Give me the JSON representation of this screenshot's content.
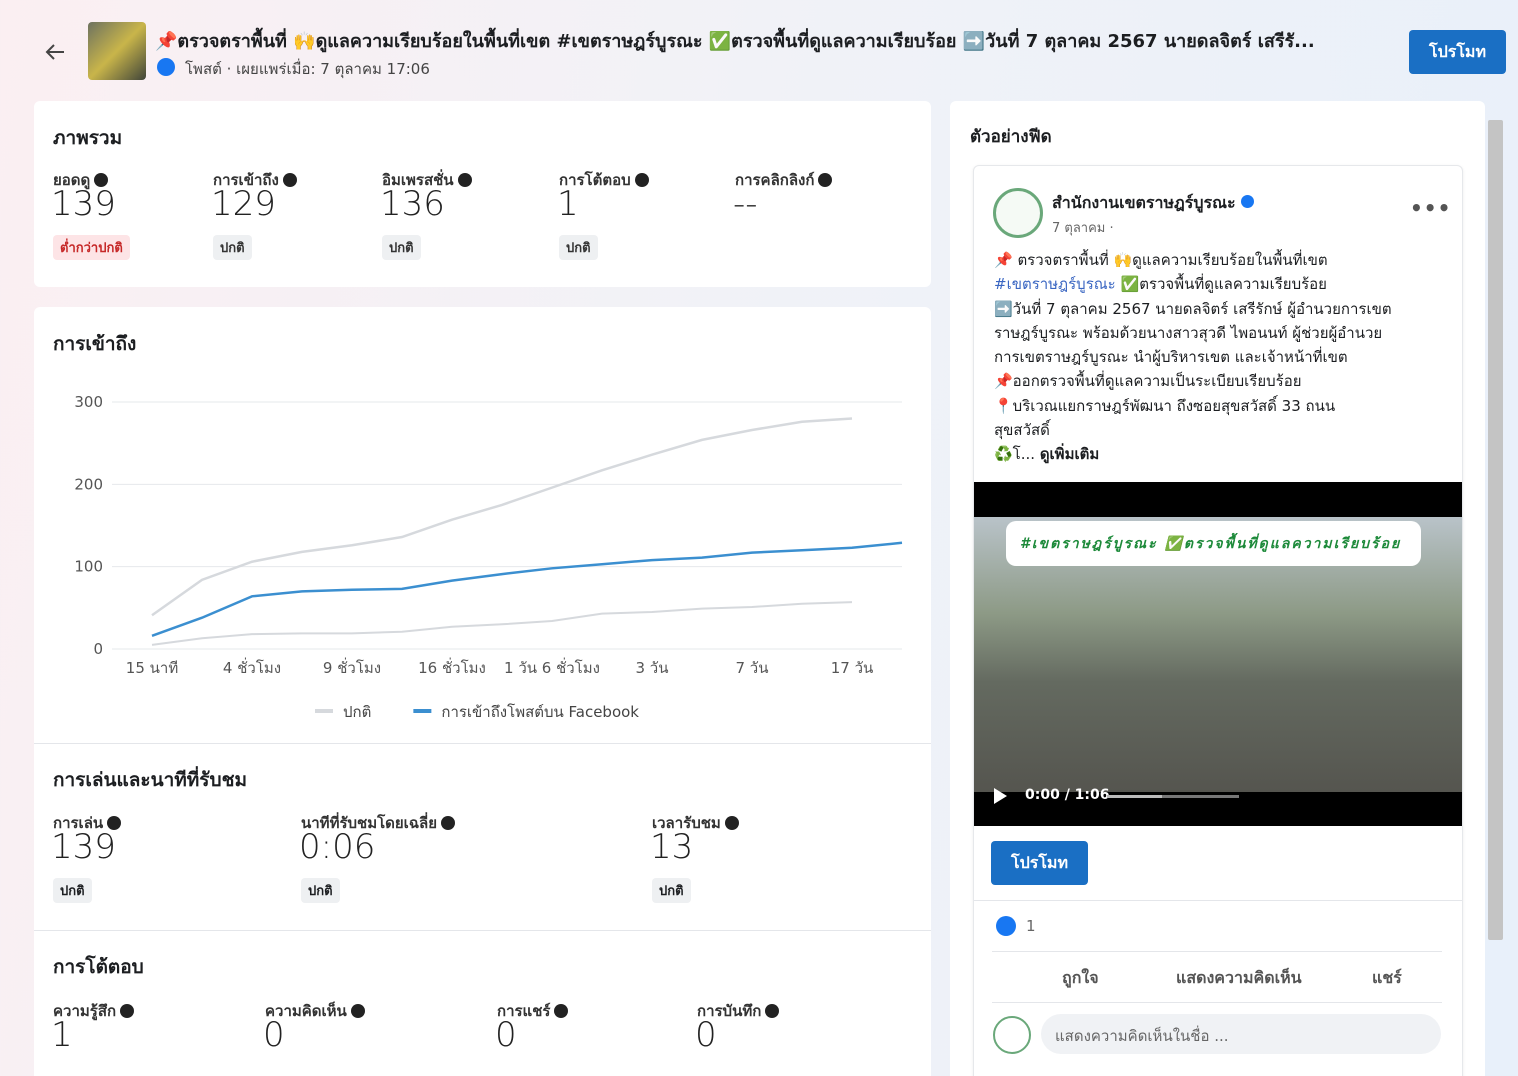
{
  "header": {
    "title": "📌ตรวจตราพื้นที่ 🙌ดูแลความเรียบร้อยในพื้นที่เขต #เขตราษฎร์บูรณะ ✅ตรวจพื้นที่ดูแลความเรียบร้อย ➡️วันที่ 7 ตุลาคม 2567 นายดลจิตร์ เสรีรั...",
    "subtitle": "โพสต์ · เผยแพร่เมื่อ: 7 ตุลาคม 17:06",
    "button": "โปรโมท"
  },
  "overview": {
    "title": "ภาพรวม",
    "metrics": [
      {
        "label": "ยอดดู",
        "value": 139,
        "status": "ต่ำกว่าปกติ",
        "status_color": "#c62828",
        "badge_color": "#fde4e6"
      },
      {
        "label": "การเข้าถึง",
        "value": 129,
        "status": "ปกติ",
        "status_color": "#333333",
        "badge_color": "#eef0f2"
      },
      {
        "label": "อิมเพรสชั่น",
        "value": 136,
        "status": "ปกติ",
        "status_color": "#333333",
        "badge_color": "#eef0f2"
      },
      {
        "label": "การโต้ตอบ",
        "value": 1,
        "status": "ปกติ",
        "status_color": "#333333",
        "badge_color": "#eef0f2"
      },
      {
        "label": "การคลิกลิงก์",
        "value": "--"
      }
    ]
  },
  "reach": {
    "title": "การเข้าถึง",
    "chart": {
      "type": "line",
      "categories": [
        "15 นาที",
        null,
        "4 ชั่วโมง",
        null,
        "9 ชั่วโมง",
        null,
        "16 ชั่วโมง",
        null,
        "1 วัน 6 ชั่วโมง",
        null,
        "3 วัน",
        null,
        "7 วัน",
        null,
        "17 วัน",
        null
      ],
      "ylim": [
        0,
        300
      ],
      "yticks": [
        0,
        100,
        200,
        300
      ],
      "grid": true,
      "series": [
        {
          "name": "ปกติ",
          "color": "#d6d9dd",
          "values": [
            41,
            84,
            106,
            118,
            126,
            136,
            157,
            175,
            196,
            217,
            236,
            254,
            266,
            276,
            280,
            null
          ],
          "low": [
            5,
            13,
            18,
            19,
            19,
            21,
            27,
            30,
            34,
            43,
            45,
            49,
            51,
            55,
            57,
            null
          ]
        },
        {
          "name": "การเข้าถึงโพสต์บน Facebook",
          "color": "#3b8fd0",
          "values": [
            16,
            38,
            64,
            70,
            72,
            73,
            83,
            91,
            98,
            103,
            108,
            111,
            117,
            120,
            123,
            129
          ]
        }
      ]
    }
  },
  "playback": {
    "title": "การเล่นและนาทีที่รับชม",
    "metrics": [
      {
        "label": "การเล่น",
        "value": 139,
        "status": "ปกติ"
      },
      {
        "label": "นาทีที่รับชมโดยเฉลี่ย",
        "value": "0:06",
        "status": "ปกติ"
      },
      {
        "label": "เวลารับชม",
        "value": 13,
        "status": "ปกติ"
      }
    ]
  },
  "engagement": {
    "title": "การโต้ตอบ",
    "metrics": [
      {
        "label": "ความรู้สึก",
        "value": 1
      },
      {
        "label": "ความคิดเห็น",
        "value": 0
      },
      {
        "label": "การแชร์",
        "value": 0
      },
      {
        "label": "การบันทึก",
        "value": 0
      }
    ]
  },
  "preview": {
    "title": "ตัวอย่างฟีด",
    "page_name": "สำนักงานเขตราษฎร์บูรณะ",
    "date": "7 ตุลาคม ·",
    "line0": "📌 ตรวจตราพื้นที่ 🙌ดูแลความเรียบร้อยในพื้นที่เขต",
    "hashtag": "#เขตราษฎร์บูรณะ",
    "line1": " ✅ตรวจพื้นที่ดูแลความเรียบร้อย",
    "lines": [
      "➡️วันที่ 7 ตุลาคม 2567 นายดลจิตร์ เสรีรักษ์ ผู้อำนวยการเขต",
      "ราษฎร์บูรณะ พร้อมด้วยนางสาวสุวดี ไพอนนท์ ผู้ช่วยผู้อำนวย",
      "การเขตราษฎร์บูรณะ นำผู้บริหารเขต และเจ้าหน้าที่เขต",
      " 📌ออกตรวจพื้นที่ดูแลความเป็นระเบียบเรียบร้อย",
      "📍บริเวณแยกราษฎร์พัฒนา ถึงซอยสุขสวัสดิ์ 33 ถนน",
      "สุขสวัสดิ์"
    ],
    "last": "♻️โ... ",
    "more": "ดูเพิ่มเติม",
    "video_caption": "#เขตราษฎร์บูรณะ ✅ตรวจพื้นที่ดูแลความเรียบร้อย",
    "video_time": "0:00 / 1:06",
    "button": "โปรโมท",
    "likes": 1,
    "like": "ถูกใจ",
    "comment": "แสดงความคิดเห็น",
    "share": "แชร์",
    "comment_placeholder": "แสดงความคิดเห็นในชื่อ ..."
  }
}
